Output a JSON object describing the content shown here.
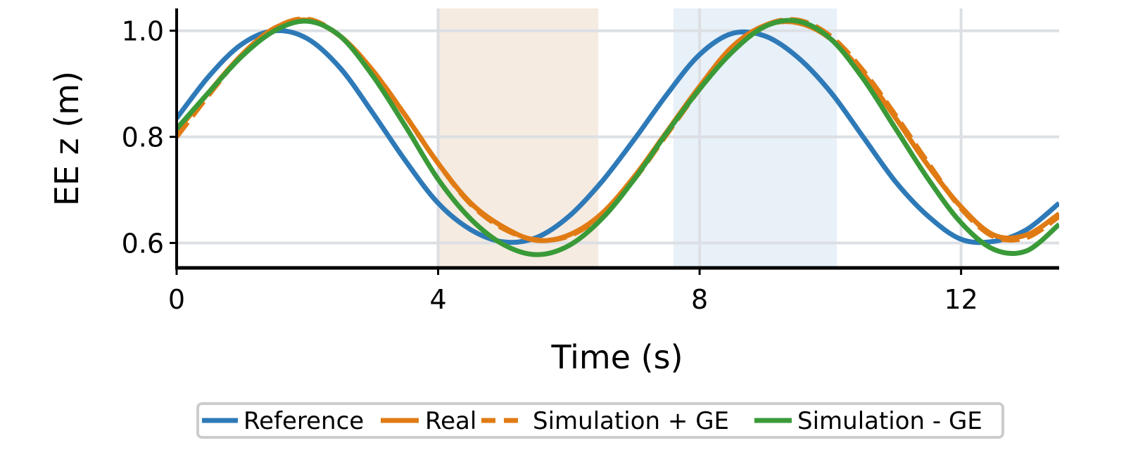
{
  "chart_data": {
    "type": "line",
    "xlabel": "Time (s)",
    "ylabel": "EE z (m)",
    "xlim": [
      0,
      13.5
    ],
    "ylim": [
      0.553,
      1.042
    ],
    "xticks": [
      0,
      4,
      8,
      12
    ],
    "xtick_labels": [
      "0",
      "4",
      "8",
      "12"
    ],
    "yticks": [
      0.6,
      0.8,
      1.0
    ],
    "ytick_labels": [
      "0.6",
      "0.8",
      "1.0"
    ],
    "grid": true,
    "legend_position": "bottom-center",
    "shaded_regions": [
      {
        "x_start": 4.0,
        "x_end": 6.45,
        "color": "#f5ebe1"
      },
      {
        "x_start": 7.6,
        "x_end": 10.1,
        "color": "#e8f0f8"
      }
    ],
    "series": [
      {
        "name": "Reference",
        "color": "#2e7ab8",
        "style": "solid",
        "x": [
          0,
          0.5,
          1.0,
          1.5,
          2.0,
          2.5,
          3.0,
          3.5,
          4.0,
          4.5,
          5.0,
          5.5,
          6.0,
          6.5,
          7.0,
          7.5,
          8.0,
          8.5,
          9.0,
          9.5,
          10.0,
          10.5,
          11.0,
          11.5,
          12.0,
          12.5,
          13.0,
          13.5
        ],
        "values": [
          0.835,
          0.915,
          0.975,
          1.0,
          0.985,
          0.93,
          0.845,
          0.755,
          0.675,
          0.625,
          0.602,
          0.61,
          0.65,
          0.715,
          0.795,
          0.88,
          0.955,
          0.995,
          0.99,
          0.95,
          0.885,
          0.8,
          0.715,
          0.65,
          0.607,
          0.603,
          0.625,
          0.675
        ]
      },
      {
        "name": "Real",
        "color": "#e07b14",
        "style": "solid",
        "x": [
          0,
          0.5,
          1.0,
          1.5,
          2.0,
          2.5,
          3.0,
          3.5,
          4.0,
          4.5,
          5.0,
          5.5,
          6.0,
          6.5,
          7.0,
          7.5,
          8.0,
          8.5,
          9.0,
          9.5,
          10.0,
          10.5,
          11.0,
          11.5,
          12.0,
          12.5,
          13.0,
          13.5
        ],
        "values": [
          0.81,
          0.885,
          0.955,
          1.005,
          1.02,
          0.99,
          0.925,
          0.84,
          0.75,
          0.675,
          0.63,
          0.605,
          0.615,
          0.655,
          0.725,
          0.81,
          0.895,
          0.97,
          1.01,
          1.015,
          0.985,
          0.92,
          0.835,
          0.745,
          0.668,
          0.615,
          0.615,
          0.655
        ]
      },
      {
        "name": "Simulation + GE",
        "color": "#e07b14",
        "style": "dashed",
        "x": [
          0,
          0.5,
          1.0,
          1.5,
          2.0,
          2.5,
          3.0,
          3.5,
          4.0,
          4.5,
          5.0,
          5.5,
          6.0,
          6.5,
          7.0,
          7.5,
          8.0,
          8.5,
          9.0,
          9.5,
          10.0,
          10.5,
          11.0,
          11.5,
          12.0,
          12.5,
          13.0,
          13.5
        ],
        "values": [
          0.8,
          0.88,
          0.955,
          1.005,
          1.022,
          0.99,
          0.925,
          0.84,
          0.75,
          0.673,
          0.627,
          0.606,
          0.613,
          0.652,
          0.72,
          0.805,
          0.89,
          0.965,
          1.01,
          1.02,
          0.99,
          0.925,
          0.84,
          0.75,
          0.665,
          0.612,
          0.61,
          0.65
        ]
      },
      {
        "name": "Simulation - GE",
        "color": "#3a9a38",
        "style": "solid",
        "x": [
          0,
          0.5,
          1.0,
          1.5,
          2.0,
          2.5,
          3.0,
          3.5,
          4.0,
          4.5,
          5.0,
          5.5,
          6.0,
          6.5,
          7.0,
          7.5,
          8.0,
          8.5,
          9.0,
          9.5,
          10.0,
          10.5,
          11.0,
          11.5,
          12.0,
          12.5,
          13.0,
          13.5
        ],
        "values": [
          0.815,
          0.885,
          0.952,
          1.0,
          1.018,
          0.99,
          0.915,
          0.82,
          0.72,
          0.645,
          0.597,
          0.578,
          0.595,
          0.645,
          0.72,
          0.808,
          0.89,
          0.96,
          1.008,
          1.018,
          0.985,
          0.91,
          0.815,
          0.72,
          0.638,
          0.588,
          0.585,
          0.635
        ]
      }
    ]
  }
}
